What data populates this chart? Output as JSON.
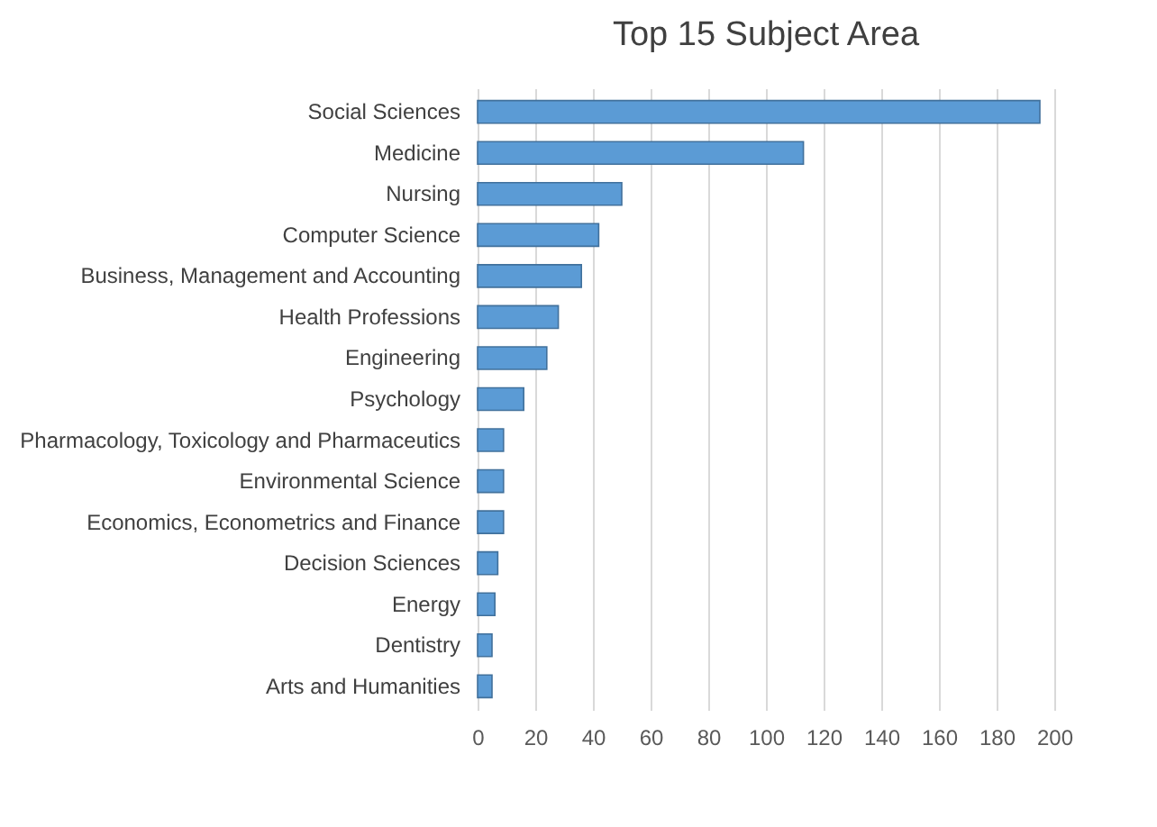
{
  "chart_data": {
    "type": "bar",
    "title": "Top 15 Subject Area",
    "orientation": "horizontal",
    "categories": [
      "Social Sciences",
      "Medicine",
      "Nursing",
      "Computer Science",
      "Business, Management and Accounting",
      "Health Professions",
      "Engineering",
      "Psychology",
      "Pharmacology, Toxicology and Pharmaceutics",
      "Environmental Science",
      "Economics, Econometrics and Finance",
      "Decision Sciences",
      "Energy",
      "Dentistry",
      "Arts and Humanities"
    ],
    "values": [
      195,
      113,
      50,
      42,
      36,
      28,
      24,
      16,
      9,
      9,
      9,
      7,
      6,
      5,
      5
    ],
    "color": "#5b9bd5",
    "xlim": [
      0,
      200
    ],
    "xticks": [
      0,
      20,
      40,
      60,
      80,
      100,
      120,
      140,
      160,
      180,
      200
    ],
    "grid": "x"
  }
}
